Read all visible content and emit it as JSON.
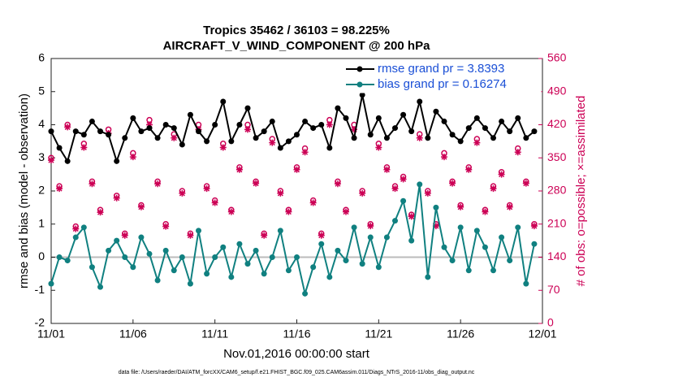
{
  "chart_data": {
    "type": "line",
    "title": "Tropics 35462 / 36103 = 98.225%",
    "subtitle": "AIRCRAFT_V_WIND_COMPONENT @ 200 hPa",
    "xlabel": "Nov.01,2016 00:00:00 start",
    "ylabel": "rmse and bias (model - observation)",
    "y2label": "# of obs: o=possible; ×=assimilated",
    "footnote": "data file: /Users/raeder/DAI/ATM_forcXX/CAM6_setup/f.e21.FHIST_BGC.f09_025.CAM6assim.011/Diags_NTrS_2016-11/obs_diag_output.nc",
    "xlim": [
      0,
      30
    ],
    "xticks": [
      {
        "value": 0,
        "label": "11/01"
      },
      {
        "value": 5,
        "label": "11/06"
      },
      {
        "value": 10,
        "label": "11/11"
      },
      {
        "value": 15,
        "label": "11/16"
      },
      {
        "value": 20,
        "label": "11/21"
      },
      {
        "value": 25,
        "label": "11/26"
      },
      {
        "value": 30,
        "label": "12/01"
      }
    ],
    "ylim": [
      -2,
      6
    ],
    "yticks": [
      -2,
      -1,
      0,
      1,
      2,
      3,
      4,
      5,
      6
    ],
    "y2lim": [
      0,
      560
    ],
    "y2ticks": [
      0,
      70,
      140,
      210,
      280,
      350,
      420,
      490,
      560
    ],
    "grid": false,
    "legend": "upper right",
    "x": [
      0,
      0.5,
      1,
      1.5,
      2,
      2.5,
      3,
      3.5,
      4,
      4.5,
      5,
      5.5,
      6,
      6.5,
      7,
      7.5,
      8,
      8.5,
      9,
      9.5,
      10,
      10.5,
      11,
      11.5,
      12,
      12.5,
      13,
      13.5,
      14,
      14.5,
      15,
      15.5,
      16,
      16.5,
      17,
      17.5,
      18,
      18.5,
      19,
      19.5,
      20,
      20.5,
      21,
      21.5,
      22,
      22.5,
      23,
      23.5,
      24,
      24.5,
      25,
      25.5,
      26,
      26.5,
      27,
      27.5,
      28,
      28.5,
      29,
      29.5
    ],
    "series": [
      {
        "name": "rmse grand pr = 3.8393",
        "color": "#000000",
        "values": [
          3.8,
          3.3,
          2.9,
          3.8,
          3.7,
          4.1,
          3.8,
          3.7,
          2.9,
          3.6,
          4.2,
          3.8,
          3.9,
          3.6,
          4.0,
          3.9,
          3.4,
          4.3,
          3.8,
          3.5,
          4.0,
          4.7,
          3.5,
          4.0,
          4.5,
          3.6,
          3.8,
          4.1,
          3.3,
          3.5,
          3.7,
          4.1,
          3.9,
          4.0,
          3.3,
          4.5,
          4.2,
          3.6,
          4.9,
          3.7,
          4.2,
          3.6,
          3.9,
          4.3,
          3.8,
          4.7,
          3.6,
          4.4,
          4.1,
          3.7,
          3.5,
          3.9,
          4.2,
          3.9,
          3.6,
          4.1,
          3.8,
          4.2,
          3.6,
          3.8
        ]
      },
      {
        "name": "bias grand pr = 0.16274",
        "color": "#108080",
        "values": [
          -0.8,
          0.0,
          -0.1,
          0.6,
          0.9,
          -0.3,
          -0.9,
          0.2,
          0.5,
          0.0,
          -0.3,
          0.6,
          0.1,
          -0.7,
          0.2,
          -0.4,
          0.0,
          -0.8,
          0.8,
          -0.5,
          0.0,
          0.3,
          -0.6,
          0.4,
          -0.2,
          0.2,
          -0.5,
          0.0,
          0.8,
          -0.4,
          0.0,
          -1.1,
          -0.3,
          0.4,
          -0.6,
          0.2,
          -0.1,
          0.9,
          -0.2,
          0.6,
          -0.3,
          0.6,
          1.1,
          1.7,
          0.5,
          2.2,
          -0.6,
          1.5,
          0.3,
          -0.1,
          0.9,
          -0.4,
          0.8,
          0.3,
          -0.4,
          0.6,
          -0.1,
          0.9,
          -0.8,
          0.4
        ]
      }
    ],
    "obs_possible": {
      "color": "#cc0055",
      "axis": "y2",
      "values": [
        350,
        290,
        420,
        205,
        380,
        300,
        240,
        410,
        270,
        190,
        360,
        250,
        430,
        300,
        210,
        400,
        280,
        190,
        420,
        290,
        260,
        380,
        240,
        330,
        420,
        300,
        190,
        390,
        280,
        240,
        330,
        370,
        260,
        190,
        430,
        300,
        240,
        420,
        280,
        210,
        380,
        330,
        290,
        310,
        230,
        400,
        280,
        210,
        360,
        300,
        250,
        330,
        390,
        240,
        290,
        320,
        250,
        370,
        300,
        210
      ]
    },
    "obs_assimilated": {
      "color": "#cc0055",
      "axis": "y2",
      "values": [
        345,
        285,
        415,
        200,
        372,
        295,
        235,
        402,
        265,
        186,
        352,
        246,
        420,
        295,
        205,
        392,
        275,
        186,
        410,
        285,
        255,
        372,
        236,
        325,
        410,
        296,
        186,
        382,
        275,
        236,
        325,
        362,
        255,
        186,
        420,
        295,
        236,
        410,
        275,
        206,
        372,
        325,
        285,
        305,
        226,
        392,
        275,
        206,
        352,
        296,
        246,
        325,
        382,
        236,
        285,
        315,
        246,
        362,
        296,
        206
      ]
    }
  }
}
